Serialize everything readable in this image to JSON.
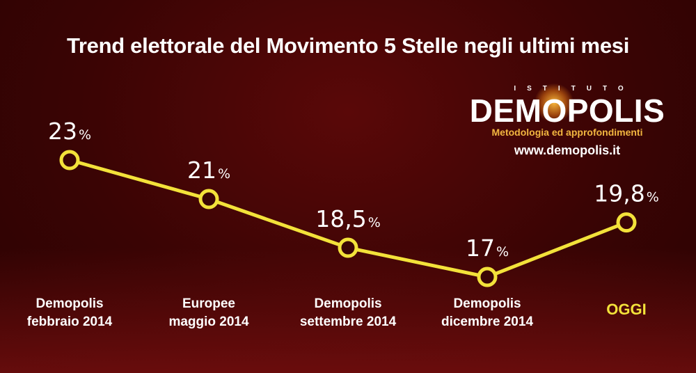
{
  "title": "Trend elettorale del Movimento 5 Stelle negli ultimi mesi",
  "logo": {
    "istituto": "ISTITUTO",
    "wordmark": "DEMOPOLIS",
    "tagline": "Metodologia ed approfondimenti",
    "url": "www.demopolis.it"
  },
  "colors": {
    "line": "#f3e23a",
    "highlight_label": "#f3e23a",
    "text": "#ffffff",
    "background": "#3a0505"
  },
  "chart_data": {
    "type": "line",
    "title": "Trend elettorale del Movimento 5 Stelle negli ultimi mesi",
    "categories": [
      [
        "Demopolis",
        "febbraio 2014"
      ],
      [
        "Europee",
        "maggio 2014"
      ],
      [
        "Demopolis",
        "settembre 2014"
      ],
      [
        "Demopolis",
        "dicembre 2014"
      ],
      [
        "OGGI"
      ]
    ],
    "values": [
      23,
      21,
      18.5,
      17,
      19.8
    ],
    "value_labels": [
      "23",
      "21",
      "18,5",
      "17",
      "19,8"
    ],
    "unit": "%",
    "highlight_index": 4,
    "xlabel": "",
    "ylabel": "",
    "grid": false,
    "legend": "none"
  }
}
